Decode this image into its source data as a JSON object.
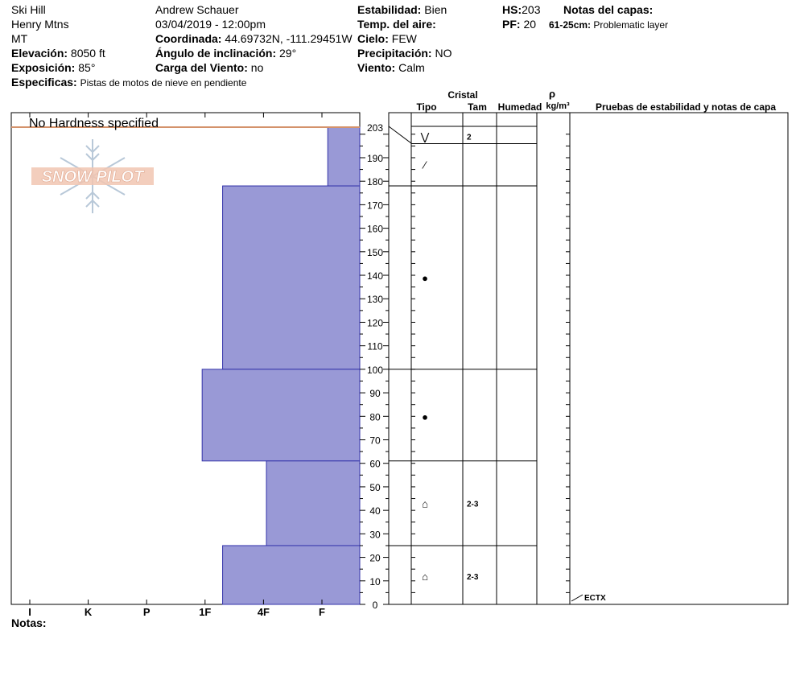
{
  "header": {
    "location": "Ski Hill",
    "range": "Henry Mtns",
    "state": "MT",
    "elevation_label": "Elevación:",
    "elevation_value": "8050 ft",
    "aspect_label": "Exposición:",
    "aspect_value": "85°",
    "specifics_label": "Especificas:",
    "specifics_value": "Pistas de motos de nieve en pendiente",
    "observer": "Andrew Schauer",
    "datetime": "03/04/2019 - 12:00pm",
    "coord_label": "Coordinada:",
    "coord_value": "44.69732N, -111.29451W",
    "slope_label": "Ángulo de inclinación:",
    "slope_value": "29°",
    "wind_load_label": "Carga del Viento:",
    "wind_load_value": "no",
    "stability_label": "Estabilidad:",
    "stability_value": "Bien",
    "air_temp_label": "Temp. del aire:",
    "sky_label": "Cielo:",
    "sky_value": "FEW",
    "precip_label": "Precipitación:",
    "precip_value": "NO",
    "wind_label": "Viento:",
    "wind_value": "Calm",
    "hs_label": "HS:",
    "hs_value": "203",
    "pf_label": "PF:",
    "pf_value": "20",
    "layer_notes_label": "Notas del capas:",
    "layer_note_range": "61-25cm:",
    "layer_note_text": "Problematic layer",
    "notes_label": "Notas:"
  },
  "logo_text": "SNOW PILOT",
  "columns": {
    "crystal": "Cristal",
    "type": "Tipo",
    "size": "Tam",
    "moisture": "Humedad",
    "rho": "ρ",
    "density_unit": "kg/m³",
    "tests": "Pruebas de estabilidad y notas de capa"
  },
  "chart_data": {
    "type": "bar",
    "title": "No Hardness specified",
    "hardness_ticks": [
      "I",
      "K",
      "P",
      "1F",
      "4F",
      "F"
    ],
    "depth_ticks": [
      "203",
      "190",
      "180",
      "170",
      "160",
      "150",
      "140",
      "130",
      "120",
      "110",
      "100",
      "90",
      "80",
      "70",
      "60",
      "50",
      "40",
      "30",
      "20",
      "10",
      "0"
    ],
    "ylim": [
      0,
      203
    ],
    "layers": [
      {
        "top": 203,
        "bottom": 178,
        "hardness_index": 5.1
      },
      {
        "top": 178,
        "bottom": 100,
        "hardness_index": 3.3
      },
      {
        "top": 100,
        "bottom": 61,
        "hardness_index": 2.95
      },
      {
        "top": 61,
        "bottom": 25,
        "hardness_index": 4.05
      },
      {
        "top": 25,
        "bottom": 0,
        "hardness_index": 3.3
      }
    ],
    "table_boundaries": [
      203,
      196,
      178,
      100,
      61,
      25,
      0
    ],
    "crystals": [
      {
        "depth": 199,
        "symbol": "⋁",
        "size": "2"
      },
      {
        "depth": 187,
        "symbol": "⁄",
        "size": ""
      },
      {
        "depth": 139,
        "symbol": "●",
        "size": ""
      },
      {
        "depth": 80,
        "symbol": "●",
        "size": ""
      },
      {
        "depth": 43,
        "symbol": "⌂",
        "size": "2-3"
      },
      {
        "depth": 12,
        "symbol": "⌂",
        "size": "2-3"
      }
    ],
    "test_result": {
      "depth": 0,
      "label": "ECTX"
    },
    "colors": {
      "bar_fill": "#9999d6",
      "bar_stroke": "#3333aa",
      "surface_line": "#d4926b"
    }
  }
}
